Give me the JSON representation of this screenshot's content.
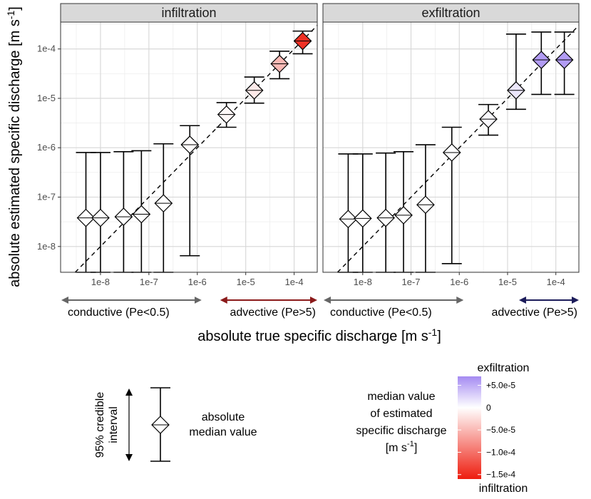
{
  "chart_data": {
    "type": "scatter",
    "subtype": "errorbar-diamond",
    "x_scale": "log10",
    "y_scale": "log10",
    "xlabel": "absolute true specific discharge [m s",
    "xlabel_sup": "-1",
    "xlabel_end": "]",
    "ylabel": "absolute estimated specific discharge [m s",
    "ylabel_sup": "-1",
    "ylabel_end": "]",
    "xlim": [
      1.5e-09,
      0.0003
    ],
    "ylim": [
      3e-09,
      0.00035
    ],
    "x_ticks": [
      1e-08,
      1e-07,
      1e-06,
      1e-05,
      0.0001
    ],
    "x_tick_labels": [
      "1e-8",
      "1e-7",
      "1e-6",
      "1e-5",
      "1e-4"
    ],
    "y_ticks": [
      1e-08,
      1e-07,
      1e-06,
      1e-05,
      0.0001
    ],
    "y_tick_labels": [
      "1e-8",
      "1e-7",
      "1e-6",
      "1e-5",
      "1e-4"
    ],
    "reference_line": "1:1 dashed",
    "panels": [
      {
        "title": "infiltration",
        "regime_left": "conductive (Pe<0.5)",
        "regime_left_color": "#7a1010",
        "regime_right": "advective (Pe>5)",
        "regime_right_color": "#7a1010",
        "arrow_left_color": "#666666",
        "arrow_right_color": "#8b1a1a",
        "points": [
          {
            "x": 5e-09,
            "median": 3.8e-08,
            "lower": 3e-09,
            "upper": 8e-07,
            "signed": -3.8e-08
          },
          {
            "x": 1e-08,
            "median": 3.8e-08,
            "lower": 3e-09,
            "upper": 8e-07,
            "signed": -3.8e-08
          },
          {
            "x": 3e-08,
            "median": 4e-08,
            "lower": 3e-09,
            "upper": 8.3e-07,
            "signed": -4e-08
          },
          {
            "x": 7e-08,
            "median": 4.5e-08,
            "lower": 3e-09,
            "upper": 8.7e-07,
            "signed": -4.5e-08
          },
          {
            "x": 2e-07,
            "median": 7.5e-08,
            "lower": 3e-09,
            "upper": 1.2e-06,
            "signed": -7.5e-08
          },
          {
            "x": 7e-07,
            "median": 1.15e-06,
            "lower": 6.5e-09,
            "upper": 2.8e-06,
            "signed": -1.15e-06
          },
          {
            "x": 4e-06,
            "median": 4.7e-06,
            "lower": 2.6e-06,
            "upper": 8.2e-06,
            "signed": -4.7e-06
          },
          {
            "x": 1.5e-05,
            "median": 1.45e-05,
            "lower": 8e-06,
            "upper": 2.7e-05,
            "signed": -1.45e-05
          },
          {
            "x": 5e-05,
            "median": 5e-05,
            "lower": 2.5e-05,
            "upper": 9e-05,
            "signed": -5e-05
          },
          {
            "x": 0.00015,
            "median": 0.000145,
            "lower": 8e-05,
            "upper": 0.00023,
            "signed": -0.000145
          }
        ]
      },
      {
        "title": "exfiltration",
        "regime_left": "conductive (Pe<0.5)",
        "regime_left_color": "#777777",
        "regime_right": "advective (Pe>5)",
        "regime_right_color": "#1c1c5a",
        "arrow_left_color": "#666666",
        "arrow_right_color": "#1c1c5a",
        "points": [
          {
            "x": 5e-09,
            "median": 3.6e-08,
            "lower": 3e-09,
            "upper": 7.5e-07,
            "signed": 3.6e-08
          },
          {
            "x": 1e-08,
            "median": 3.7e-08,
            "lower": 3e-09,
            "upper": 7.5e-07,
            "signed": 3.7e-08
          },
          {
            "x": 3e-08,
            "median": 3.8e-08,
            "lower": 3e-09,
            "upper": 7.8e-07,
            "signed": 3.8e-08
          },
          {
            "x": 7e-08,
            "median": 4.3e-08,
            "lower": 3e-09,
            "upper": 8.3e-07,
            "signed": 4.3e-08
          },
          {
            "x": 2e-07,
            "median": 7e-08,
            "lower": 3e-09,
            "upper": 1.15e-06,
            "signed": 7e-08
          },
          {
            "x": 7e-07,
            "median": 8e-07,
            "lower": 4.5e-09,
            "upper": 2.6e-06,
            "signed": 8e-07
          },
          {
            "x": 4e-06,
            "median": 3.8e-06,
            "lower": 1.8e-06,
            "upper": 7.5e-06,
            "signed": 3.8e-06
          },
          {
            "x": 1.5e-05,
            "median": 1.45e-05,
            "lower": 6e-06,
            "upper": 0.0002,
            "signed": 1.45e-05
          },
          {
            "x": 5e-05,
            "median": 6e-05,
            "lower": 1.2e-05,
            "upper": 0.00022,
            "signed": 6e-05
          },
          {
            "x": 0.00015,
            "median": 6e-05,
            "lower": 1.2e-05,
            "upper": 0.00022,
            "signed": 6e-05
          }
        ]
      }
    ],
    "legend": {
      "interval_label": [
        "95% credible",
        "interval"
      ],
      "median_label": [
        "absolute",
        "median value"
      ],
      "colorbar_title": [
        "median value",
        "of estimated",
        "specific discharge",
        "[m s"
      ],
      "colorbar_title_sup": "-1",
      "colorbar_title_end": "]",
      "colorbar_top_label": "exfiltration",
      "colorbar_bottom_label": "infiltration",
      "colorbar_range": [
        -0.00016,
        7e-05
      ],
      "colorbar_ticks": [
        5e-05,
        0,
        -5e-05,
        -0.0001,
        -0.00015
      ],
      "colorbar_tick_labels": [
        "+5.0e-5",
        "0",
        "−5.0e-5",
        "−1.0e-4",
        "−1.5e-4"
      ],
      "color_negative_max": "#ee1c0e",
      "color_zero": "#ffffff",
      "color_positive_max": "#a58bf2"
    }
  }
}
